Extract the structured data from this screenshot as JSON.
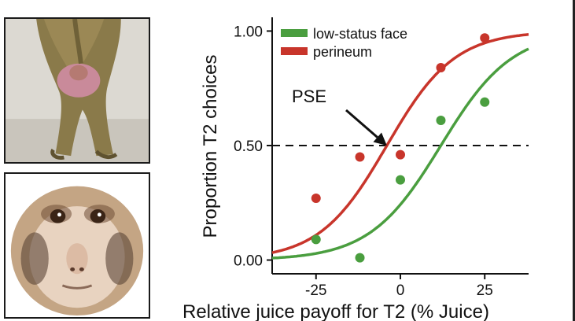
{
  "chart_data": {
    "type": "scatter",
    "title": "",
    "xlabel": "Relative juice payoff for T2 (% Juice)",
    "ylabel": "Proportion T2 choices",
    "xlim": [
      -38,
      38
    ],
    "ylim": [
      -0.06,
      1.06
    ],
    "x_ticks": [
      -25,
      0,
      25
    ],
    "x_tick_labels": [
      "-25",
      "0",
      "25"
    ],
    "y_ticks": [
      0,
      0.5,
      1
    ],
    "y_tick_labels": [
      "0.00",
      "0.50",
      "1.00"
    ],
    "reference_line": {
      "y": 0.5,
      "style": "dashed"
    },
    "legend_position": "top-left",
    "annotation": {
      "text": "PSE",
      "points_to": {
        "x": -4,
        "y": 0.5
      }
    },
    "series": [
      {
        "name": "low-status face",
        "color": "#4a9e3f",
        "points": [
          {
            "x": -25,
            "y": 0.09
          },
          {
            "x": -12,
            "y": 0.01
          },
          {
            "x": 0,
            "y": 0.35
          },
          {
            "x": 12,
            "y": 0.61
          },
          {
            "x": 25,
            "y": 0.69
          }
        ],
        "fit": {
          "model": "logistic",
          "midpoint": 12,
          "slope": 0.095
        }
      },
      {
        "name": "perineum",
        "color": "#c8352b",
        "points": [
          {
            "x": -25,
            "y": 0.27
          },
          {
            "x": -12,
            "y": 0.45
          },
          {
            "x": 0,
            "y": 0.46
          },
          {
            "x": 12,
            "y": 0.84
          },
          {
            "x": 25,
            "y": 0.97
          }
        ],
        "fit": {
          "model": "logistic",
          "midpoint": -4,
          "slope": 0.1
        }
      }
    ]
  },
  "photos": [
    {
      "subject": "monkey perineum",
      "icon": "perineum-photo-icon"
    },
    {
      "subject": "monkey face",
      "icon": "monkey-face-photo-icon"
    }
  ]
}
